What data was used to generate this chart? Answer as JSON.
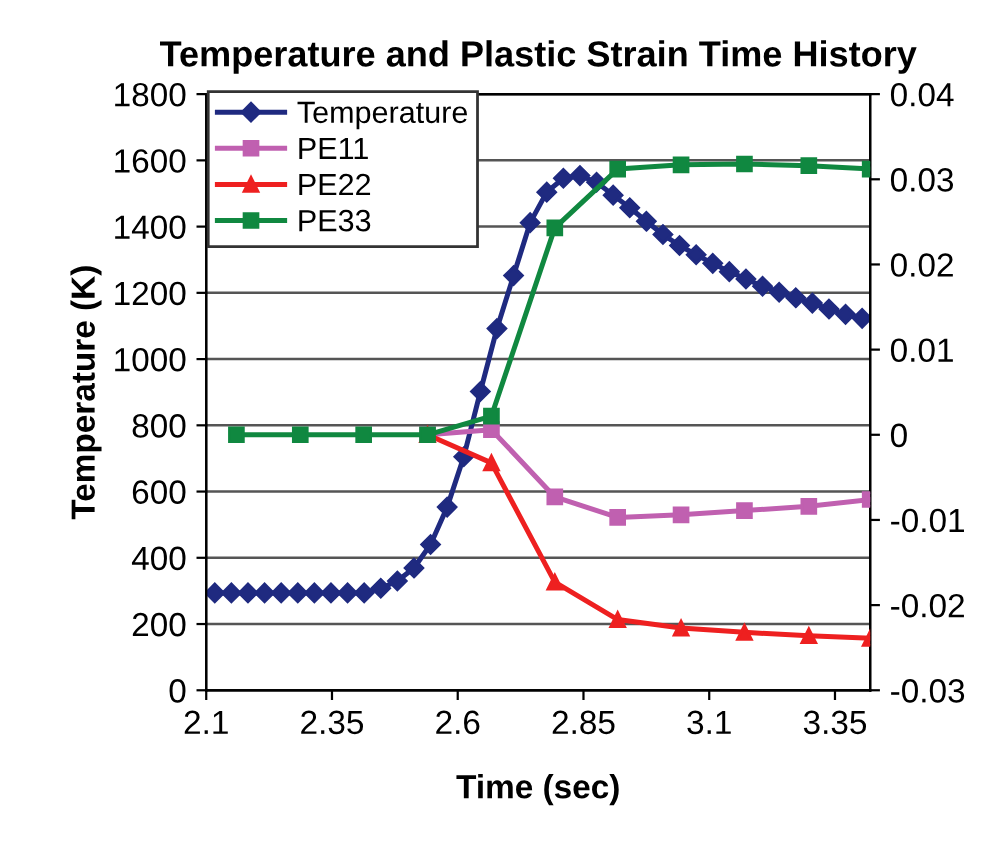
{
  "chart_data": {
    "type": "line",
    "title": "Temperature and Plastic Strain Time History",
    "xlabel": "Time (sec)",
    "ylabel": "Temperature (K)",
    "xlim": [
      2.1,
      3.42
    ],
    "xticks": [
      2.1,
      2.35,
      2.6,
      2.85,
      3.1,
      3.35
    ],
    "ylim": [
      0,
      1800
    ],
    "yticks": [
      0,
      200,
      400,
      600,
      800,
      1000,
      1200,
      1400,
      1600,
      1800
    ],
    "y2lim": [
      -0.03,
      0.04
    ],
    "y2ticks": [
      {
        "value": -0.03,
        "label": "-0.03"
      },
      {
        "value": -0.02,
        "label": "-0.02"
      },
      {
        "value": -0.01,
        "label": "-0.01"
      },
      0,
      0.01,
      0.02,
      0.03,
      0.04
    ],
    "grid": "y",
    "legend": "top left",
    "line_style": "solid",
    "series": [
      {
        "name": "Temperature",
        "color": "#1f2a80",
        "marker": "diamond",
        "x": [
          2.117,
          2.15,
          2.183,
          2.216,
          2.249,
          2.282,
          2.315,
          2.348,
          2.381,
          2.414,
          2.447,
          2.48,
          2.513,
          2.546,
          2.579,
          2.612,
          2.645,
          2.678,
          2.711,
          2.744,
          2.777,
          2.81,
          2.843,
          2.876,
          2.909,
          2.942,
          2.975,
          3.008,
          3.041,
          3.074,
          3.107,
          3.14,
          3.173,
          3.206,
          3.239,
          3.272,
          3.305,
          3.338,
          3.371,
          3.404
        ],
        "values": [
          294,
          294,
          294,
          294,
          294,
          294,
          294,
          294,
          294,
          294,
          308,
          330,
          369,
          440,
          553,
          705,
          902,
          1092,
          1252,
          1412,
          1504,
          1546,
          1554,
          1534,
          1495,
          1457,
          1416,
          1376,
          1343,
          1315,
          1289,
          1264,
          1242,
          1220,
          1202,
          1185,
          1169,
          1151,
          1135,
          1123
        ]
      },
      {
        "name": "PE11",
        "color": "#c060b0",
        "marker": "square",
        "axis": "y2",
        "x": [
          2.54,
          2.667,
          2.793,
          2.918,
          3.044,
          3.17,
          3.298,
          3.42
        ],
        "values": [
          0,
          0.0006,
          -0.0073,
          -0.0097,
          -0.0094,
          -0.0089,
          -0.0084,
          -0.0076
        ]
      },
      {
        "name": "PE22",
        "color": "#ee2020",
        "marker": "triangle",
        "axis": "y2",
        "x": [
          2.54,
          2.667,
          2.793,
          2.918,
          3.044,
          3.17,
          3.298,
          3.42
        ],
        "values": [
          0,
          -0.0033,
          -0.0173,
          -0.0217,
          -0.0227,
          -0.0232,
          -0.0236,
          -0.0239
        ]
      },
      {
        "name": "PE33",
        "color": "#108840",
        "marker": "square",
        "axis": "y2",
        "x": [
          2.16,
          2.287,
          2.413,
          2.54,
          2.667,
          2.793,
          2.918,
          3.044,
          3.17,
          3.298,
          3.42
        ],
        "values": [
          0,
          0,
          0,
          0,
          0.0022,
          0.0243,
          0.0312,
          0.0317,
          0.0318,
          0.0316,
          0.0312
        ]
      }
    ]
  }
}
